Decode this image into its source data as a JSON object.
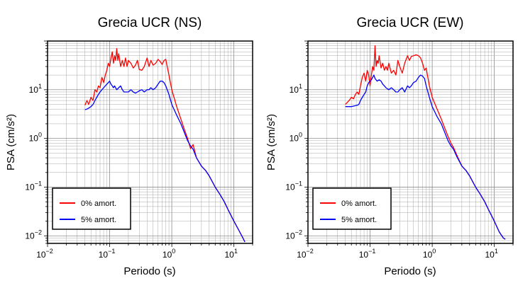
{
  "chart_data": [
    {
      "type": "line",
      "title": "Grecia UCR (NS)",
      "xlabel": "Periodo (s)",
      "ylabel": "PSA (cm/s²)",
      "xscale": "log",
      "yscale": "log",
      "xlim": [
        0.01,
        20
      ],
      "ylim": [
        0.007,
        100
      ],
      "grid": true,
      "legend_position": "bottom-left",
      "x_ticks": [
        {
          "base": "10",
          "exp": "−2",
          "v": 0.01
        },
        {
          "base": "10",
          "exp": "−1",
          "v": 0.1
        },
        {
          "base": "10",
          "exp": "0",
          "v": 1
        },
        {
          "base": "10",
          "exp": "1",
          "v": 10
        }
      ],
      "y_ticks": [
        {
          "base": "10",
          "exp": "−2",
          "v": 0.01
        },
        {
          "base": "10",
          "exp": "−1",
          "v": 0.1
        },
        {
          "base": "10",
          "exp": "0",
          "v": 1
        },
        {
          "base": "10",
          "exp": "1",
          "v": 10
        }
      ],
      "series": [
        {
          "name": "0% amort.",
          "color": "#ff0000",
          "x": [
            0.04,
            0.043,
            0.046,
            0.05,
            0.054,
            0.058,
            0.062,
            0.066,
            0.07,
            0.075,
            0.08,
            0.085,
            0.09,
            0.095,
            0.1,
            0.105,
            0.11,
            0.115,
            0.12,
            0.125,
            0.13,
            0.135,
            0.14,
            0.15,
            0.16,
            0.17,
            0.18,
            0.19,
            0.2,
            0.22,
            0.24,
            0.26,
            0.28,
            0.3,
            0.33,
            0.36,
            0.4,
            0.43,
            0.46,
            0.5,
            0.55,
            0.6,
            0.65,
            0.7,
            0.75,
            0.8,
            0.9,
            1.0,
            1.2,
            1.4,
            1.6,
            1.8,
            2.0,
            2.2,
            2.5,
            3.0,
            3.5,
            4.0,
            5.0,
            6.0,
            7.0,
            8.0,
            10,
            12,
            14,
            15
          ],
          "y": [
            4.8,
            6,
            5,
            7,
            6,
            10,
            9,
            12,
            11,
            18,
            14,
            20,
            25,
            35,
            30,
            45,
            60,
            35,
            50,
            40,
            70,
            40,
            55,
            30,
            40,
            30,
            45,
            30,
            40,
            35,
            28,
            32,
            40,
            26,
            25,
            30,
            45,
            30,
            40,
            32,
            35,
            42,
            38,
            33,
            40,
            42,
            20,
            10,
            4.5,
            2.5,
            1.5,
            1.0,
            0.62,
            0.75,
            0.4,
            0.27,
            0.22,
            0.17,
            0.1,
            0.07,
            0.05,
            0.035,
            0.02,
            0.013,
            0.009,
            0.0075
          ]
        },
        {
          "name": "5% amort.",
          "color": "#0000ff",
          "x": [
            0.04,
            0.043,
            0.046,
            0.05,
            0.054,
            0.058,
            0.062,
            0.066,
            0.07,
            0.075,
            0.08,
            0.085,
            0.09,
            0.095,
            0.1,
            0.105,
            0.11,
            0.115,
            0.12,
            0.13,
            0.14,
            0.15,
            0.16,
            0.17,
            0.18,
            0.2,
            0.22,
            0.24,
            0.26,
            0.28,
            0.3,
            0.33,
            0.36,
            0.4,
            0.43,
            0.46,
            0.5,
            0.55,
            0.6,
            0.65,
            0.7,
            0.75,
            0.8,
            0.9,
            1.0,
            1.2,
            1.4,
            1.6,
            1.8,
            2.0,
            2.2,
            2.5,
            3.0,
            3.5,
            4.0,
            5.0,
            6.0,
            7.0,
            8.0,
            10,
            12,
            14,
            15
          ],
          "y": [
            3.9,
            4.0,
            4.2,
            4.5,
            5.0,
            6,
            7,
            8,
            9,
            10,
            11,
            12,
            13,
            14,
            15,
            13,
            12,
            11,
            12,
            10,
            11,
            12,
            10,
            9,
            9,
            9,
            10,
            9,
            8.5,
            9,
            9.5,
            10,
            9,
            10,
            10,
            11,
            10,
            11,
            13,
            15,
            15,
            14,
            12,
            8,
            5,
            3,
            2,
            1.3,
            0.9,
            0.7,
            0.6,
            0.4,
            0.27,
            0.22,
            0.17,
            0.1,
            0.07,
            0.05,
            0.035,
            0.02,
            0.013,
            0.009,
            0.0075
          ]
        }
      ]
    },
    {
      "type": "line",
      "title": "Grecia UCR (EW)",
      "xlabel": "Periodo (s)",
      "ylabel": "PSA (cm/s²)",
      "xscale": "log",
      "yscale": "log",
      "xlim": [
        0.01,
        20
      ],
      "ylim": [
        0.007,
        100
      ],
      "grid": true,
      "legend_position": "bottom-left",
      "x_ticks": [
        {
          "base": "10",
          "exp": "−2",
          "v": 0.01
        },
        {
          "base": "10",
          "exp": "−1",
          "v": 0.1
        },
        {
          "base": "10",
          "exp": "0",
          "v": 1
        },
        {
          "base": "10",
          "exp": "1",
          "v": 10
        }
      ],
      "y_ticks": [
        {
          "base": "10",
          "exp": "−2",
          "v": 0.01
        },
        {
          "base": "10",
          "exp": "−1",
          "v": 0.1
        },
        {
          "base": "10",
          "exp": "0",
          "v": 1
        },
        {
          "base": "10",
          "exp": "1",
          "v": 10
        }
      ],
      "series": [
        {
          "name": "0% amort.",
          "color": "#ff0000",
          "x": [
            0.04,
            0.043,
            0.046,
            0.05,
            0.054,
            0.058,
            0.062,
            0.066,
            0.07,
            0.075,
            0.08,
            0.085,
            0.09,
            0.095,
            0.1,
            0.105,
            0.11,
            0.115,
            0.12,
            0.125,
            0.13,
            0.135,
            0.14,
            0.15,
            0.16,
            0.17,
            0.18,
            0.19,
            0.2,
            0.22,
            0.24,
            0.26,
            0.28,
            0.3,
            0.33,
            0.36,
            0.4,
            0.43,
            0.46,
            0.5,
            0.55,
            0.6,
            0.65,
            0.7,
            0.75,
            0.8,
            0.9,
            1.0,
            1.2,
            1.4,
            1.6,
            1.8,
            2.0,
            2.2,
            2.5,
            3.0,
            3.5,
            4.0,
            5.0,
            6.0,
            7.0,
            8.0,
            10,
            12,
            14,
            15
          ],
          "y": [
            5,
            5.5,
            6,
            7,
            6.5,
            8,
            9,
            8,
            12,
            18,
            22,
            15,
            25,
            20,
            12,
            20,
            30,
            25,
            80,
            30,
            40,
            35,
            50,
            28,
            35,
            25,
            30,
            25,
            35,
            22,
            25,
            20,
            40,
            30,
            22,
            35,
            50,
            40,
            48,
            50,
            52,
            50,
            45,
            35,
            25,
            28,
            12,
            7,
            4,
            2.5,
            1.6,
            1.1,
            0.8,
            0.65,
            0.45,
            0.27,
            0.22,
            0.17,
            0.1,
            0.07,
            0.05,
            0.035,
            0.02,
            0.012,
            0.009,
            0.0085
          ]
        },
        {
          "name": "5% amort.",
          "color": "#0000ff",
          "x": [
            0.04,
            0.043,
            0.046,
            0.05,
            0.054,
            0.058,
            0.062,
            0.066,
            0.07,
            0.075,
            0.08,
            0.085,
            0.09,
            0.095,
            0.1,
            0.105,
            0.11,
            0.115,
            0.12,
            0.13,
            0.14,
            0.15,
            0.16,
            0.17,
            0.18,
            0.2,
            0.22,
            0.24,
            0.26,
            0.28,
            0.3,
            0.33,
            0.36,
            0.4,
            0.43,
            0.46,
            0.5,
            0.55,
            0.6,
            0.65,
            0.7,
            0.75,
            0.8,
            0.9,
            1.0,
            1.2,
            1.4,
            1.6,
            1.8,
            2.0,
            2.2,
            2.5,
            3.0,
            3.5,
            4.0,
            5.0,
            6.0,
            7.0,
            8.0,
            10,
            12,
            14,
            15
          ],
          "y": [
            4.5,
            4.5,
            4.5,
            4.5,
            4.6,
            4.7,
            4.8,
            5,
            6,
            7,
            8,
            9,
            12,
            14,
            15,
            16,
            18,
            20,
            17,
            15,
            16,
            15,
            13,
            12,
            11,
            10,
            11,
            10,
            9,
            9,
            10,
            11,
            9,
            12,
            11,
            12,
            14,
            15,
            18,
            20,
            19,
            17,
            12,
            7,
            4.5,
            2.8,
            2.0,
            1.3,
            0.9,
            0.7,
            0.6,
            0.42,
            0.27,
            0.22,
            0.17,
            0.1,
            0.07,
            0.05,
            0.035,
            0.02,
            0.012,
            0.009,
            0.0085
          ]
        }
      ]
    }
  ]
}
